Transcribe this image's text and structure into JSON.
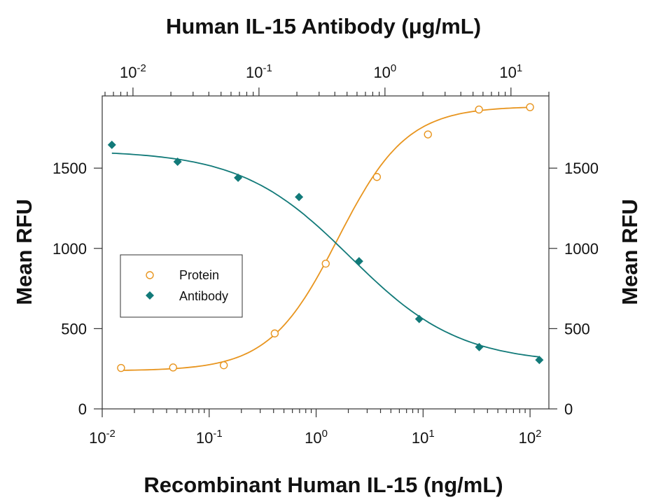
{
  "chart_data": {
    "type": "scatter",
    "title": "",
    "top_xlabel": "Human IL-15 Antibody (μg/mL)",
    "xlabel": "Recombinant Human IL-15 (ng/mL)",
    "ylabel_left": "Mean RFU",
    "ylabel_right": "Mean RFU",
    "x_scale": "log",
    "top_x_scale": "log",
    "xlim": [
      0.01,
      150
    ],
    "top_xlim": [
      0.0057,
      20
    ],
    "ylim": [
      0,
      1950
    ],
    "x_ticks": [
      {
        "base": "10",
        "exp": "-2",
        "value": 0.01
      },
      {
        "base": "10",
        "exp": "-1",
        "value": 0.1
      },
      {
        "base": "10",
        "exp": "0",
        "value": 1
      },
      {
        "base": "10",
        "exp": "1",
        "value": 10
      },
      {
        "base": "10",
        "exp": "2",
        "value": 100
      }
    ],
    "top_x_ticks": [
      {
        "base": "10",
        "exp": "-2",
        "value": 0.01
      },
      {
        "base": "10",
        "exp": "-1",
        "value": 0.1
      },
      {
        "base": "10",
        "exp": "0",
        "value": 1
      },
      {
        "base": "10",
        "exp": "1",
        "value": 10
      }
    ],
    "y_ticks": [
      {
        "label": "0",
        "value": 0
      },
      {
        "label": "500",
        "value": 500
      },
      {
        "label": "1000",
        "value": 1000
      },
      {
        "label": "1500",
        "value": 1500
      }
    ],
    "legend_position": "left-middle",
    "series": [
      {
        "name": "Protein",
        "axis": "bottom",
        "marker": "open-circle",
        "color": "#e8951f",
        "points": [
          {
            "x": 0.015,
            "y": 255
          },
          {
            "x": 0.046,
            "y": 258
          },
          {
            "x": 0.137,
            "y": 272
          },
          {
            "x": 0.41,
            "y": 470
          },
          {
            "x": 1.23,
            "y": 905
          },
          {
            "x": 3.7,
            "y": 1445
          },
          {
            "x": 11.1,
            "y": 1710
          },
          {
            "x": 33.3,
            "y": 1865
          },
          {
            "x": 100,
            "y": 1880
          }
        ],
        "fit": {
          "bottom": 237,
          "top": 1885,
          "ec50": 1.6,
          "hill": 1.35
        }
      },
      {
        "name": "Antibody",
        "axis": "top",
        "marker": "filled-diamond",
        "color": "#127a79",
        "points": [
          {
            "x": 0.0068,
            "y": 1645
          },
          {
            "x": 0.0226,
            "y": 1540
          },
          {
            "x": 0.0683,
            "y": 1440
          },
          {
            "x": 0.208,
            "y": 1320
          },
          {
            "x": 0.623,
            "y": 920
          },
          {
            "x": 1.87,
            "y": 560
          },
          {
            "x": 5.6,
            "y": 385
          },
          {
            "x": 16.8,
            "y": 305
          }
        ],
        "fit": {
          "bottom": 283,
          "top": 1610,
          "ec50": 0.53,
          "hill": 1.0
        }
      }
    ]
  }
}
